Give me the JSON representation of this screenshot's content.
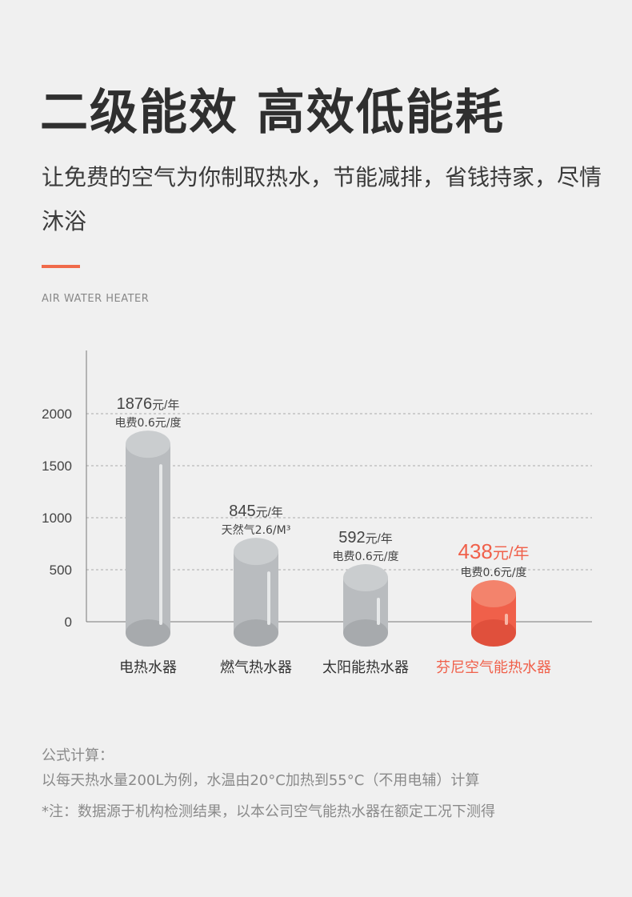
{
  "header": {
    "title": "二级能效 高效低能耗",
    "subtitle": "让免费的空气为你制取热水，节能减排，省钱持家，尽情沐浴",
    "english": "AIR WATER HEATER"
  },
  "colors": {
    "accent": "#f06a4a",
    "bar_gray": "#b9bcbf",
    "highlight": "#f0604a"
  },
  "chart_data": {
    "type": "bar",
    "categories": [
      "电热水器",
      "燃气热水器",
      "太阳能热水器",
      "芬尼空气能热水器"
    ],
    "values": [
      1876,
      845,
      592,
      438
    ],
    "value_unit": "元/年",
    "notes": [
      "电费0.6元/度",
      "天然气2.6/M³",
      "电费0.6元/度",
      "电费0.6元/度"
    ],
    "highlight_index": 3,
    "yticks": [
      0,
      500,
      1000,
      1500,
      2000
    ],
    "ylim": [
      0,
      2500
    ],
    "grid": true
  },
  "footnotes": {
    "formula_label": "公式计算：",
    "formula_text": "以每天热水量200L为例，水温由20°C加热到55°C（不用电辅）计算",
    "note": "*注：数据源于机构检测结果，以本公司空气能热水器在额定工况下测得"
  }
}
